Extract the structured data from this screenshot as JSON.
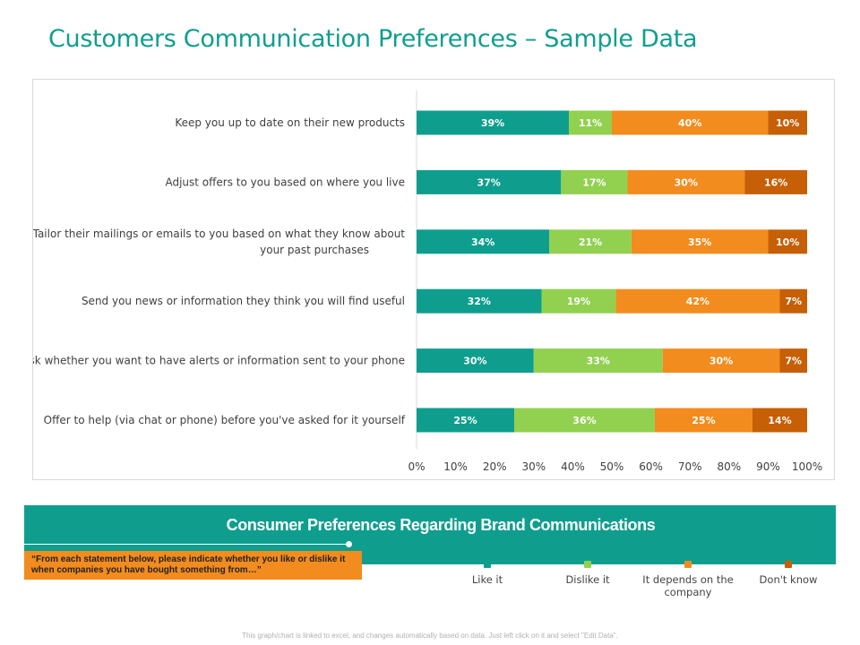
{
  "page": {
    "title": "Customers Communication Preferences – Sample Data",
    "footer_note": "This graph/chart is linked to excel, and changes automatically based on data. Just left click on it and select \"Edit Data\"."
  },
  "banner": {
    "title": "Consumer Preferences Regarding Brand Communications",
    "quote": "“From each statement below, please indicate whether you like or dislike it when companies you have bought something from…”"
  },
  "legend": [
    {
      "label": "Like it",
      "color": "#0f9e8e"
    },
    {
      "label": "Dislike it",
      "color": "#92d050"
    },
    {
      "label": "It depends on the company",
      "color": "#f28c1e"
    },
    {
      "label": "Don't know",
      "color": "#c65f05"
    }
  ],
  "chart_data": {
    "type": "bar",
    "orientation": "horizontal",
    "stacked": true,
    "categories": [
      [
        "Keep you up to date on their new products"
      ],
      [
        "Adjust offers to you based on where you live"
      ],
      [
        "Tailor their mailings or emails to you based on what they know about",
        "your past purchases"
      ],
      [
        "Send you news or information they think you will find useful"
      ],
      [
        "Ask whether you want to have alerts or information sent to your phone"
      ],
      [
        "Offer to help (via chat or phone) before you've asked for it yourself"
      ]
    ],
    "series": [
      {
        "name": "Like it",
        "color": "#0f9e8e",
        "values": [
          39,
          37,
          34,
          32,
          30,
          25
        ]
      },
      {
        "name": "Dislike it",
        "color": "#92d050",
        "values": [
          11,
          17,
          21,
          19,
          33,
          36
        ]
      },
      {
        "name": "It depends on the company",
        "color": "#f28c1e",
        "values": [
          40,
          30,
          35,
          42,
          30,
          25
        ]
      },
      {
        "name": "Don't know",
        "color": "#c65f05",
        "values": [
          10,
          16,
          10,
          7,
          7,
          14
        ]
      }
    ],
    "data_label_suffix": "%",
    "xlim": [
      0,
      100
    ],
    "xticks": [
      0,
      10,
      20,
      30,
      40,
      50,
      60,
      70,
      80,
      90,
      100
    ],
    "xtick_labels": [
      "0%",
      "10%",
      "20%",
      "30%",
      "40%",
      "50%",
      "60%",
      "70%",
      "80%",
      "90%",
      "100%"
    ],
    "grid": false,
    "legend_position": "bottom"
  }
}
